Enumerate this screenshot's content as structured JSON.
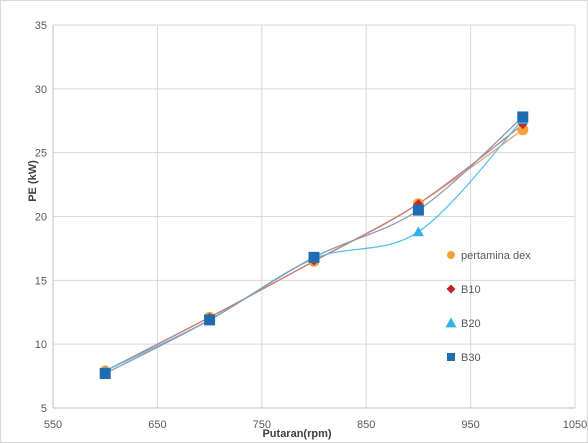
{
  "chart_data": {
    "type": "scatter",
    "title": "",
    "xlabel": "Putaran(rpm)",
    "ylabel": "PE (kW)",
    "xlim": [
      550,
      1050
    ],
    "ylim": [
      5,
      35
    ],
    "xticks": [
      550,
      650,
      750,
      850,
      950,
      1050
    ],
    "yticks": [
      5,
      10,
      15,
      20,
      25,
      30,
      35
    ],
    "grid": true,
    "legend_position": "right",
    "series": [
      {
        "name": "pertamina dex",
        "marker": "circle",
        "color": "#f4a235",
        "line_color": "#e8a27a",
        "x": [
          600,
          700,
          800,
          900,
          1000
        ],
        "y": [
          7.9,
          12.1,
          16.5,
          21.0,
          26.8
        ]
      },
      {
        "name": "B10",
        "marker": "diamond",
        "color": "#c0262d",
        "line_color": "#c97b7b",
        "x": [
          600,
          700,
          800,
          900,
          1000
        ],
        "y": [
          7.9,
          12.1,
          16.5,
          21.0,
          27.2
        ]
      },
      {
        "name": "B20",
        "marker": "triangle",
        "color": "#33b2e6",
        "line_color": "#55c1ee",
        "x": [
          600,
          700,
          800,
          900,
          1000
        ],
        "y": [
          7.9,
          11.9,
          16.7,
          18.8,
          27.6
        ]
      },
      {
        "name": "B30",
        "marker": "square",
        "color": "#1f6cb0",
        "line_color": "#8a9bb0",
        "x": [
          600,
          700,
          800,
          900,
          1000
        ],
        "y": [
          7.7,
          11.9,
          16.8,
          20.5,
          27.8
        ]
      }
    ]
  }
}
